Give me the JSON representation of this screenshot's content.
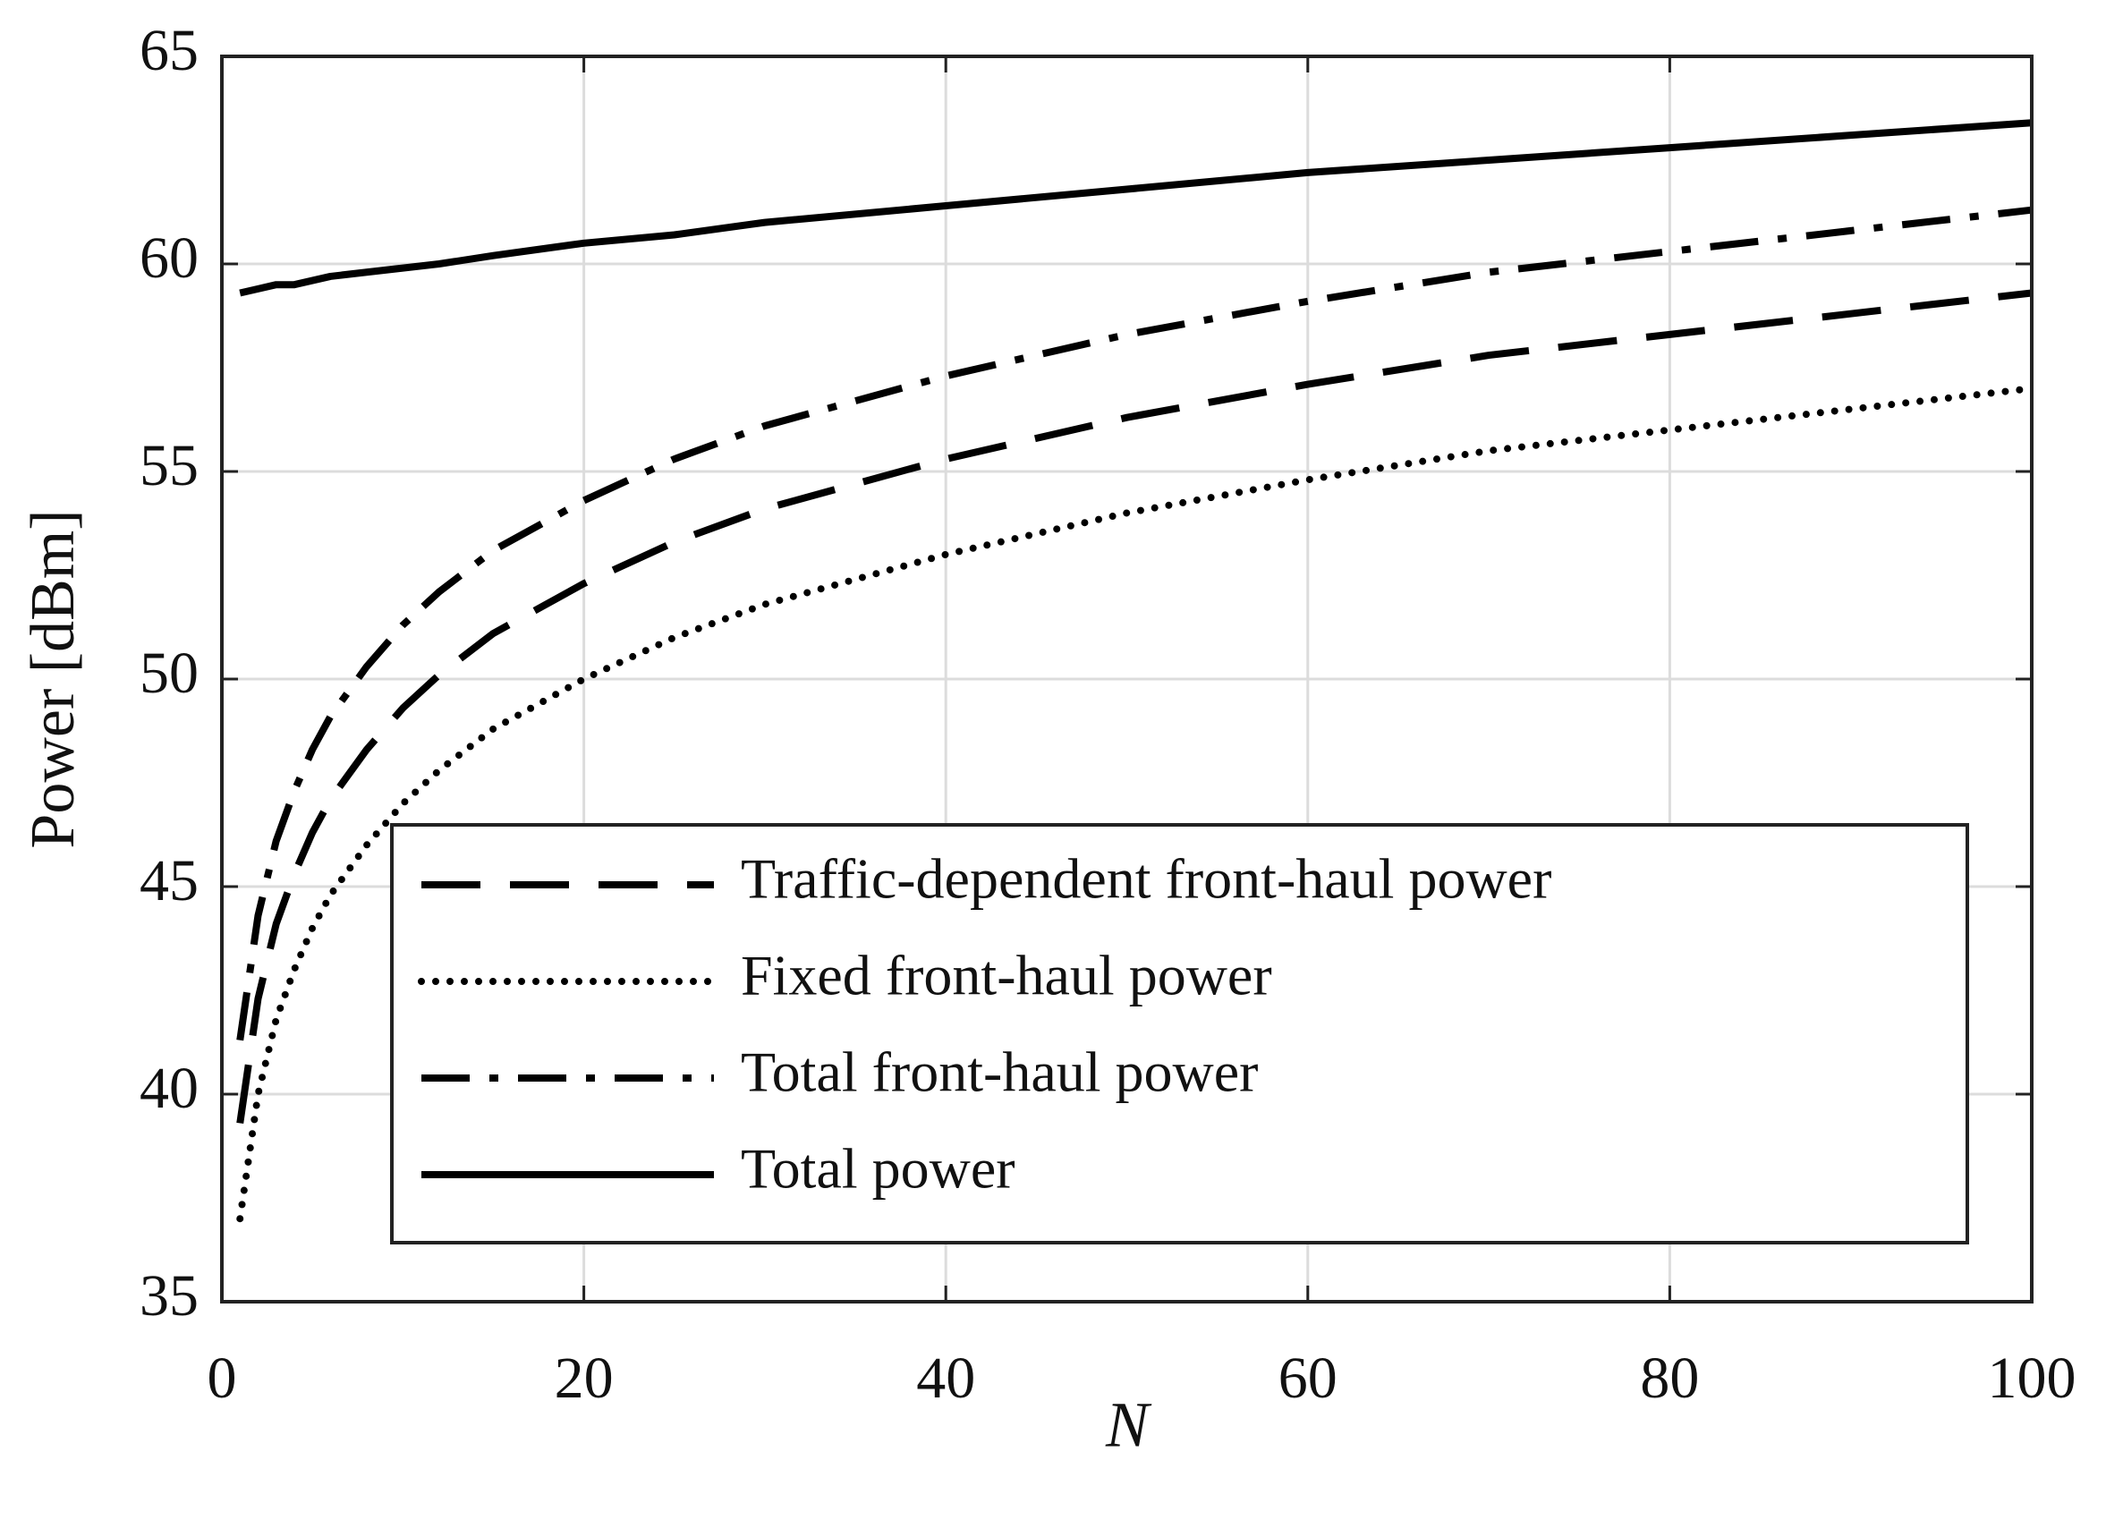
{
  "chart_data": {
    "type": "line",
    "x_label": "N",
    "y_label": "Power [dBm]",
    "x": [
      1,
      2,
      3,
      4,
      5,
      6,
      8,
      10,
      12,
      15,
      20,
      25,
      30,
      40,
      50,
      60,
      70,
      80,
      90,
      100
    ],
    "series": [
      {
        "name": "Traffic-dependent front-haul power",
        "color": "#000000",
        "linestyle": "--",
        "values": [
          39.3,
          42.3,
          44.1,
          45.3,
          46.3,
          47.1,
          48.3,
          49.3,
          50.1,
          51.1,
          52.3,
          53.3,
          54.1,
          55.3,
          56.3,
          57.1,
          57.8,
          58.3,
          58.8,
          59.3
        ]
      },
      {
        "name": "Fixed front-haul power",
        "color": "#000000",
        "linestyle": ":",
        "values": [
          37,
          40.0,
          41.8,
          43.0,
          44.0,
          44.8,
          46.0,
          47,
          47.8,
          48.8,
          50.0,
          51.0,
          51.8,
          53.0,
          54.0,
          54.8,
          55.5,
          56.0,
          56.5,
          57
        ]
      },
      {
        "name": "Total front-haul power",
        "color": "#000000",
        "linestyle": "-.",
        "values": [
          41.3,
          44.3,
          46.1,
          47.3,
          48.3,
          49.1,
          50.3,
          51.3,
          52.1,
          53.1,
          54.3,
          55.3,
          56.1,
          57.3,
          58.3,
          59.1,
          59.8,
          60.3,
          60.8,
          61.3
        ]
      },
      {
        "name": "Total power",
        "color": "#000000",
        "linestyle": "-",
        "values": [
          59.3,
          59.4,
          59.5,
          59.5,
          59.6,
          59.7,
          59.8,
          59.9,
          60.0,
          60.2,
          60.5,
          60.7,
          61.0,
          61.4,
          61.8,
          62.2,
          62.5,
          62.8,
          63.1,
          63.4
        ]
      }
    ],
    "xlim": [
      0,
      100
    ],
    "xticks": [
      0,
      20,
      40,
      60,
      80,
      100
    ],
    "ylim": [
      35,
      65
    ],
    "yticks": [
      35,
      40,
      45,
      50,
      55,
      60,
      65
    ],
    "grid": true,
    "legend": "lower right"
  }
}
